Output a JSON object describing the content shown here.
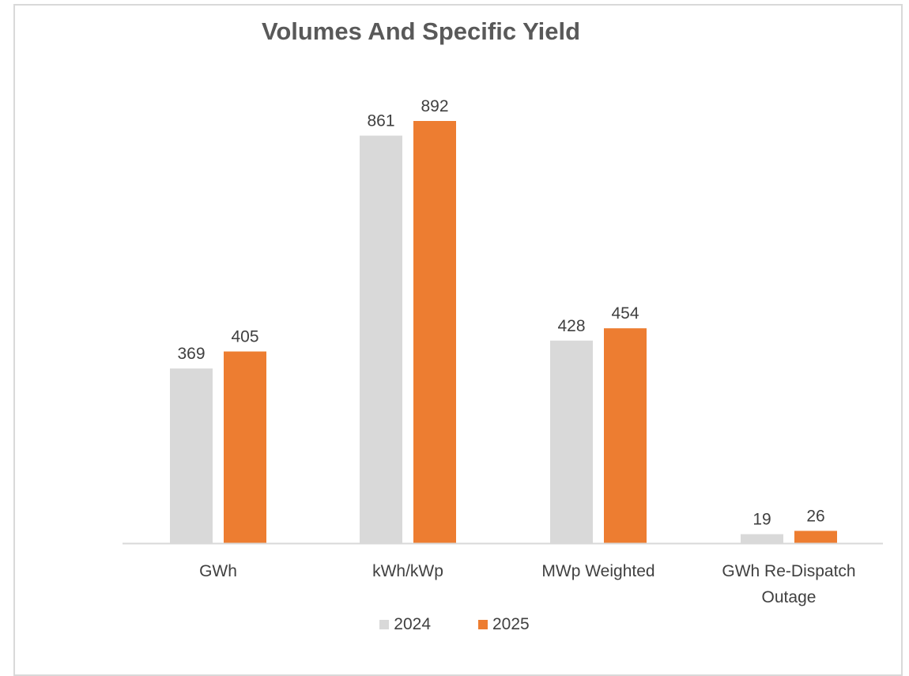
{
  "chart_data": {
    "type": "bar",
    "title": "Volumes And Specific Yield",
    "categories": [
      [
        "GWh"
      ],
      [
        "kWh/kWp"
      ],
      [
        "MWp Weighted"
      ],
      [
        "GWh Re-Dispatch",
        "Outage"
      ]
    ],
    "series": [
      {
        "name": "2024",
        "color": "#d9d9d9",
        "values": [
          369,
          861,
          428,
          19
        ]
      },
      {
        "name": "2025",
        "color": "#ed7d31",
        "values": [
          405,
          892,
          454,
          26
        ]
      }
    ],
    "ylim": [
      0,
      892
    ],
    "legend_position": "bottom",
    "grid": false
  }
}
